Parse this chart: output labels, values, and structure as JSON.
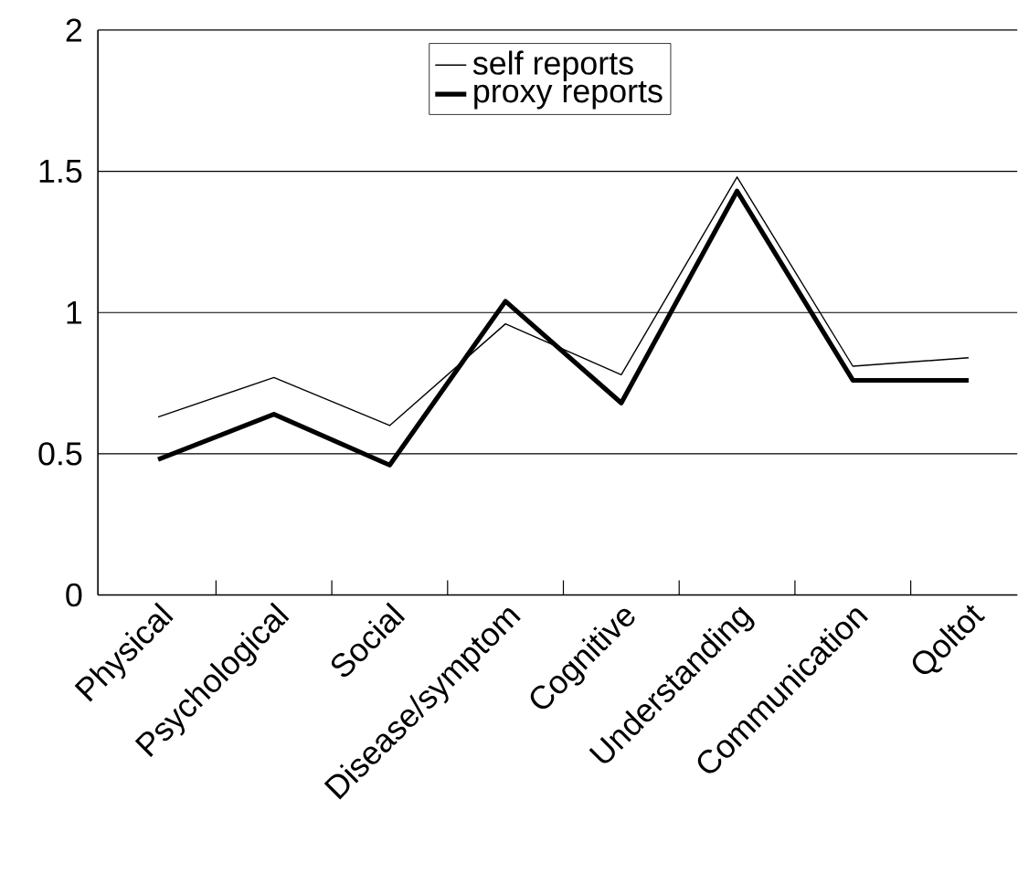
{
  "chart_data": {
    "type": "line",
    "categories": [
      "Physical",
      "Psychological",
      "Social",
      "Disease/symptom",
      "Cognitive",
      "Understanding",
      "Communication",
      "Qoltot"
    ],
    "series": [
      {
        "name": "self reports",
        "color": "#000000",
        "values": [
          0.63,
          0.77,
          0.6,
          0.96,
          0.78,
          1.48,
          0.81,
          0.84
        ]
      },
      {
        "name": "proxy reports",
        "color": "#000000",
        "values": [
          0.48,
          0.64,
          0.46,
          1.04,
          0.68,
          1.43,
          0.76,
          0.76
        ]
      }
    ],
    "ylim": [
      0,
      2
    ],
    "yticks": [
      0,
      0.5,
      1,
      1.5,
      2
    ],
    "grid": "y",
    "legend": "top",
    "marker": "none",
    "line_style": "solid"
  }
}
